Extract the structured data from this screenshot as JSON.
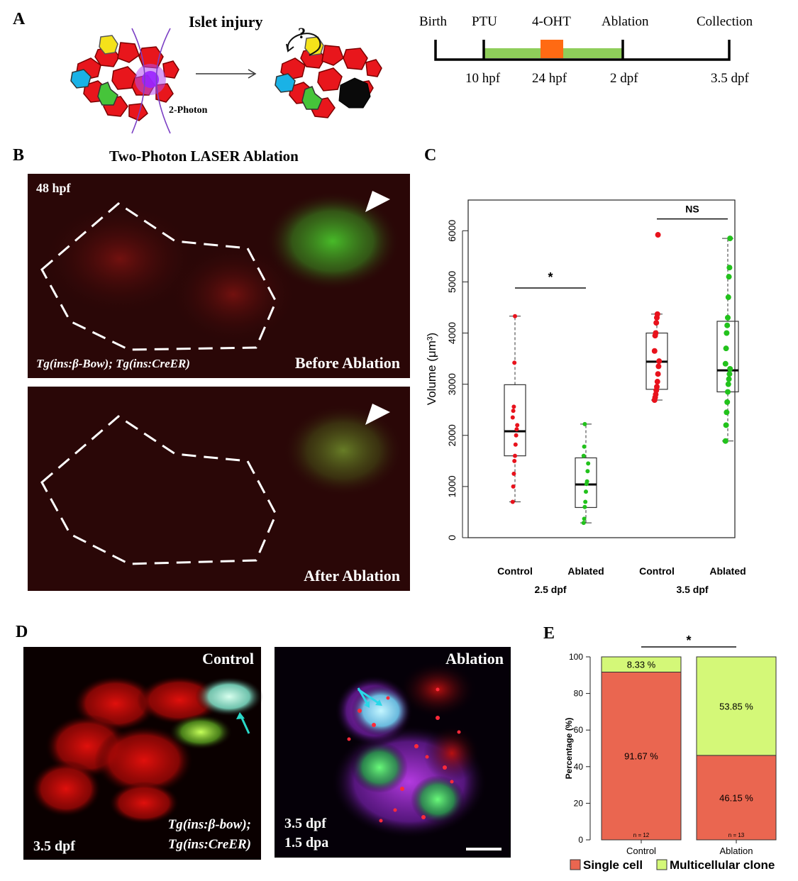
{
  "panel_labels": {
    "a": "A",
    "b": "B",
    "c": "C",
    "d": "D",
    "e": "E"
  },
  "panel_a": {
    "title": "Islet injury",
    "laser_label": "2-Photon",
    "question_mark": "?",
    "timeline": {
      "top_labels": [
        "Birth",
        "PTU",
        "4-OHT",
        "Ablation",
        "Collection"
      ],
      "bottom_labels": [
        "10 hpf",
        "24 hpf",
        "2 dpf",
        "3.5 dpf"
      ],
      "colors": {
        "ptu": "#8fce5a",
        "ohtx": "#ff6a13"
      }
    }
  },
  "panel_b": {
    "title": "Two-Photon  LASER Ablation",
    "stage_label": "48 hpf",
    "genotype": "Tg(ins:β-Bow); Tg(ins:CreER)",
    "before_label": "Before Ablation",
    "after_label": "After Ablation"
  },
  "chart_c": {
    "type": "box",
    "ylabel": "Volume (μm³)",
    "yticks": [
      "0",
      "1000",
      "2000",
      "3000",
      "4000",
      "5000",
      "6000"
    ],
    "ylim": [
      0,
      6600
    ],
    "groups": [
      {
        "label": "Control",
        "stage": "2.5 dpf",
        "color": "#e8121c",
        "min": 700,
        "q1": 1600,
        "median": 2080,
        "q3": 2990,
        "max": 4330,
        "points": [
          700,
          1000,
          1250,
          1500,
          1600,
          1820,
          2000,
          2120,
          2200,
          2350,
          2480,
          2560,
          3420,
          4330
        ]
      },
      {
        "label": "Ablated",
        "stage": "2.5 dpf",
        "color": "#22c21c",
        "min": 290,
        "q1": 590,
        "median": 1040,
        "q3": 1560,
        "max": 2220,
        "points": [
          290,
          370,
          600,
          700,
          900,
          1050,
          1100,
          1300,
          1450,
          1600,
          1780,
          2220
        ]
      },
      {
        "label": "Control",
        "stage": "3.5 dpf",
        "color": "#e8121c",
        "min": 2690,
        "q1": 2900,
        "median": 3440,
        "q3": 4000,
        "max": 4370,
        "points": [
          2690,
          2740,
          2800,
          2880,
          2950,
          3050,
          3200,
          3350,
          3450,
          3650,
          3950,
          4000,
          4200,
          4300,
          4370,
          5920
        ]
      },
      {
        "label": "Ablated",
        "stage": "3.5 dpf",
        "color": "#22c21c",
        "min": 1890,
        "q1": 2850,
        "median": 3270,
        "q3": 4230,
        "max": 5850,
        "points": [
          1890,
          2200,
          2450,
          2650,
          2850,
          3000,
          3100,
          3200,
          3300,
          3400,
          3700,
          4000,
          4150,
          4300,
          4700,
          5100,
          5280,
          5850
        ]
      }
    ],
    "stage_labels": [
      "2.5 dpf",
      "3.5 dpf"
    ],
    "significance": [
      {
        "text": "*",
        "between": [
          0,
          1
        ],
        "y": 4880
      },
      {
        "text": "NS",
        "between": [
          2,
          3
        ],
        "y": 6230
      }
    ]
  },
  "panel_d": {
    "control_label": "Control",
    "ablation_label": "Ablation",
    "control_stage": "3.5 dpf",
    "genotype_line1": "Tg(ins:β-bow);",
    "genotype_line2": "Tg(ins:CreER)",
    "ablation_stage_line1": "3.5 dpf",
    "ablation_stage_line2": "1.5 dpa"
  },
  "chart_e": {
    "type": "bar",
    "stacked": true,
    "categories": [
      "Control",
      "Ablation"
    ],
    "ylabel": "Percentage (%)",
    "yticks": [
      "0",
      "20",
      "40",
      "60",
      "80",
      "100"
    ],
    "ylim": [
      0,
      100
    ],
    "series": [
      {
        "name": "Single cell",
        "color": "#ea6650",
        "values": [
          91.67,
          46.15
        ],
        "labels": [
          "91.67 %",
          "46.15 %"
        ]
      },
      {
        "name": "Multicellular clone",
        "color": "#d4f878",
        "values": [
          8.33,
          53.85
        ],
        "labels": [
          "8.33 %",
          "53.85 %"
        ]
      }
    ],
    "n_labels": [
      "n = 12",
      "n = 13"
    ],
    "significance": "*",
    "legend_position": "bottom"
  }
}
